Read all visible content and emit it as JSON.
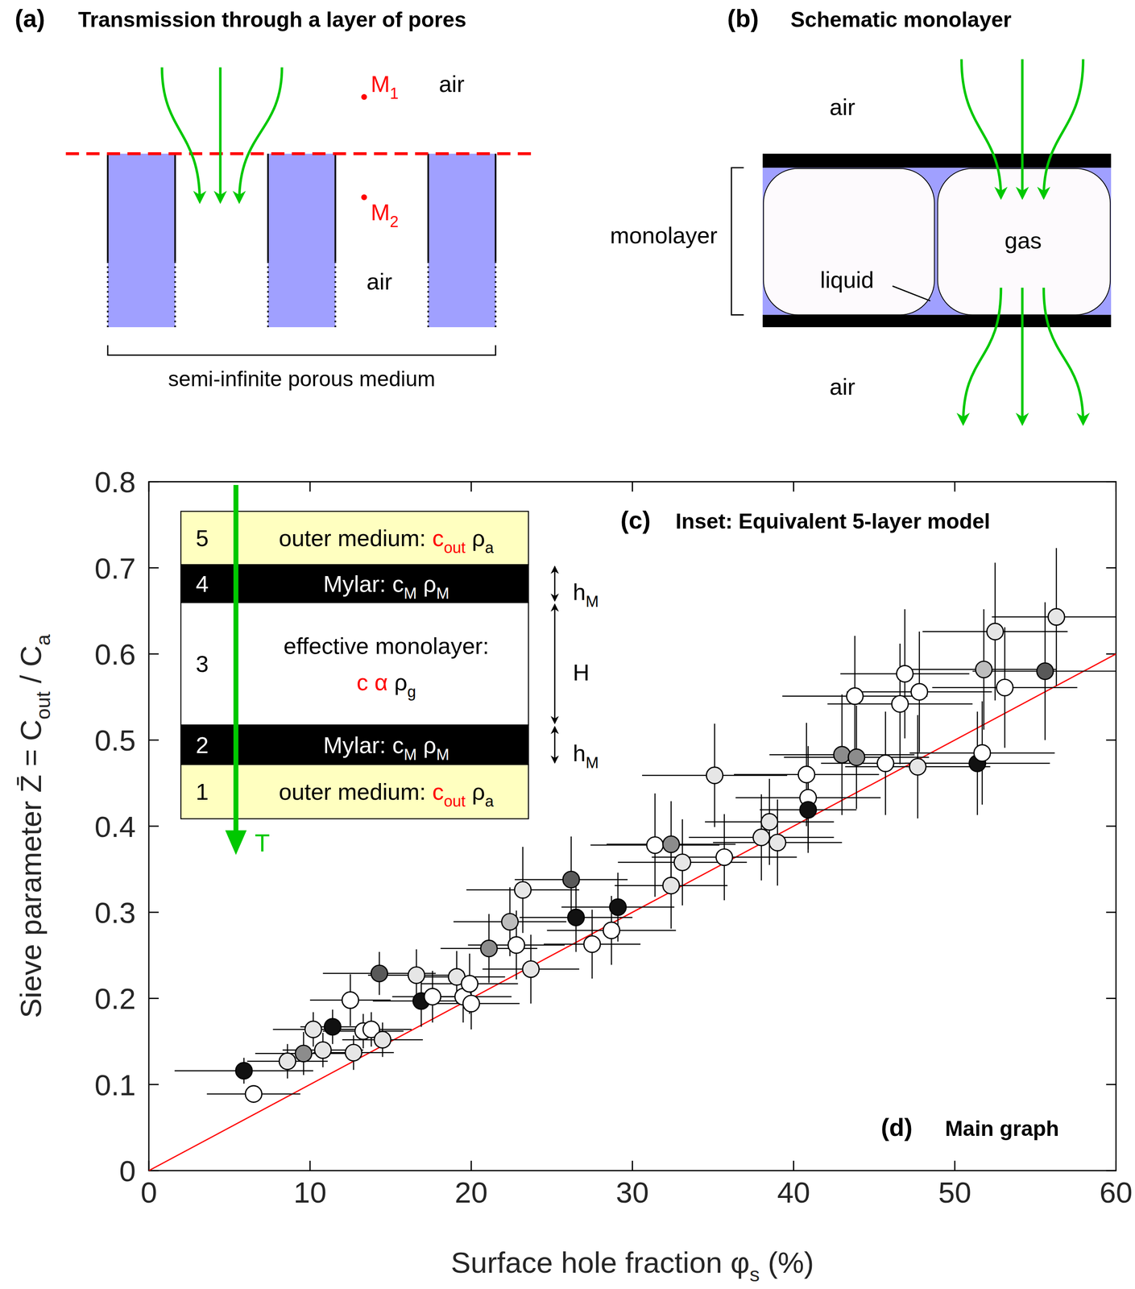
{
  "chart_data": {
    "type": "scatter",
    "letter": "(d)",
    "title": "Main graph",
    "x_label": [
      {
        "t": "Surface hole fraction φ"
      },
      {
        "t": "s",
        "sub": true
      },
      {
        "t": " (%)"
      }
    ],
    "y_label": [
      {
        "t": "Sieve parameter Z̄ = C"
      },
      {
        "t": "out",
        "sub": true
      },
      {
        "t": " / C"
      },
      {
        "t": "a",
        "sub": true
      }
    ],
    "xlim": [
      0,
      60
    ],
    "ylim": [
      0,
      0.8
    ],
    "xticks": [
      0,
      10,
      20,
      30,
      40,
      50,
      60
    ],
    "yticks": [
      0,
      0.1,
      0.2,
      0.3,
      0.4,
      0.5,
      0.6,
      0.7,
      0.8
    ],
    "grid": false,
    "marker": "circle",
    "x": [
      5.9,
      6.5,
      8.6,
      9.6,
      10.2,
      10.8,
      11.4,
      12.5,
      12.7,
      13.3,
      13.8,
      14.5,
      14.3,
      16.6,
      16.9,
      17.6,
      19.1,
      19.5,
      19.9,
      20.0,
      21.1,
      22.4,
      22.8,
      23.2,
      23.7,
      26.2,
      26.5,
      27.5,
      28.7,
      29.1,
      31.4,
      32.4,
      32.4,
      33.1,
      35.7,
      35.1,
      38.0,
      38.5,
      39.0,
      40.8,
      40.9,
      40.9,
      43.0,
      43.8,
      43.9,
      45.7,
      46.6,
      46.9,
      47.7,
      47.8,
      51.4,
      51.7,
      51.8,
      52.5,
      53.1,
      55.6,
      56.3
    ],
    "values": [
      0.116,
      0.089,
      0.127,
      0.136,
      0.164,
      0.14,
      0.167,
      0.198,
      0.137,
      0.162,
      0.164,
      0.152,
      0.229,
      0.227,
      0.197,
      0.202,
      0.225,
      0.202,
      0.217,
      0.194,
      0.258,
      0.289,
      0.262,
      0.326,
      0.234,
      0.338,
      0.294,
      0.263,
      0.279,
      0.306,
      0.378,
      0.379,
      0.331,
      0.358,
      0.364,
      0.459,
      0.387,
      0.405,
      0.381,
      0.46,
      0.433,
      0.419,
      0.483,
      0.551,
      0.48,
      0.473,
      0.542,
      0.577,
      0.469,
      0.556,
      0.473,
      0.485,
      0.582,
      0.626,
      0.561,
      0.58,
      0.643
    ],
    "x_err": [
      4.3,
      2.9,
      2.5,
      3.0,
      2.5,
      2.5,
      2.0,
      2.5,
      2.5,
      2.5,
      2.5,
      2.5,
      3.5,
      3.0,
      3.0,
      2.5,
      3.0,
      3.0,
      3.0,
      3.0,
      3.0,
      3.5,
      3.0,
      3.5,
      3.0,
      3.5,
      3.5,
      3.0,
      4.0,
      3.5,
      4.0,
      4.0,
      3.5,
      4.0,
      4.5,
      4.5,
      4.5,
      4.0,
      4.0,
      4.5,
      4.5,
      3.0,
      4.5,
      4.5,
      4.5,
      4.0,
      4.5,
      4.0,
      4.5,
      4.5,
      4.5,
      4.5,
      4.5,
      4.5,
      4.5,
      4.5,
      4.0
    ],
    "y_err": [
      0.015,
      0.01,
      0.02,
      0.025,
      0.02,
      0.02,
      0.02,
      0.03,
      0.02,
      0.02,
      0.02,
      0.02,
      0.025,
      0.03,
      0.03,
      0.03,
      0.03,
      0.03,
      0.035,
      0.03,
      0.04,
      0.04,
      0.04,
      0.05,
      0.04,
      0.05,
      0.04,
      0.04,
      0.04,
      0.04,
      0.06,
      0.05,
      0.05,
      0.05,
      0.05,
      0.06,
      0.05,
      0.05,
      0.05,
      0.06,
      0.06,
      0.05,
      0.07,
      0.07,
      0.06,
      0.06,
      0.07,
      0.075,
      0.06,
      0.07,
      0.06,
      0.06,
      0.07,
      0.08,
      0.07,
      0.08,
      0.08
    ],
    "colors": [
      "#111111",
      "#ffffff",
      "#e6e6e6",
      "#8c8c8c",
      "#e6e6e6",
      "#e6e6e6",
      "#111111",
      "#ffffff",
      "#e6e6e6",
      "#ffffff",
      "#ffffff",
      "#e6e6e6",
      "#595959",
      "#e6e6e6",
      "#111111",
      "#ffffff",
      "#e6e6e6",
      "#ffffff",
      "#ffffff",
      "#ffffff",
      "#8c8c8c",
      "#bdbdbd",
      "#ffffff",
      "#e6e6e6",
      "#e6e6e6",
      "#595959",
      "#111111",
      "#ffffff",
      "#ffffff",
      "#111111",
      "#ffffff",
      "#8c8c8c",
      "#e6e6e6",
      "#e6e6e6",
      "#ffffff",
      "#e6e6e6",
      "#e6e6e6",
      "#e6e6e6",
      "#e6e6e6",
      "#ffffff",
      "#ffffff",
      "#111111",
      "#8c8c8c",
      "#ffffff",
      "#8c8c8c",
      "#ffffff",
      "#ffffff",
      "#ffffff",
      "#e6e6e6",
      "#ffffff",
      "#111111",
      "#ffffff",
      "#bdbdbd",
      "#e6e6e6",
      "#ffffff",
      "#595959",
      "#e6e6e6"
    ],
    "reference_line": {
      "x": [
        0,
        60
      ],
      "values": [
        0,
        0.6
      ],
      "color": "#ff0000"
    }
  },
  "panel_a": {
    "letter": "(a)",
    "title": "Transmission through a layer of pores",
    "points": [
      [
        {
          "t": "M"
        },
        {
          "t": "1",
          "sub": true
        }
      ],
      [
        {
          "t": "M"
        },
        {
          "t": "2",
          "sub": true
        }
      ]
    ],
    "media": [
      "air",
      "air"
    ],
    "caption": "semi-infinite porous medium"
  },
  "panel_b": {
    "letter": "(b)",
    "title": "Schematic monolayer",
    "media": [
      "air",
      "air"
    ],
    "bracket": "monolayer",
    "bubble": "gas",
    "film": "liquid"
  },
  "inset": {
    "letter": "(c)",
    "title": "Inset: Equivalent 5-layer model",
    "arrow_label": "T",
    "layers": [
      {
        "number": "5",
        "color": "#ffffc0",
        "lines": [
          [
            {
              "t": "outer medium: "
            },
            {
              "t": "c",
              "color": "#ff0000"
            },
            {
              "t": "out",
              "sub": true,
              "color": "#ff0000"
            },
            {
              "t": "  ρ"
            },
            {
              "t": "a",
              "sub": true
            }
          ]
        ]
      },
      {
        "number": "4",
        "color": "#000000",
        "lines": [
          [
            {
              "t": "Mylar: c"
            },
            {
              "t": "M",
              "sub": true
            },
            {
              "t": "  ρ"
            },
            {
              "t": "M",
              "sub": true
            }
          ]
        ]
      },
      {
        "number": "3",
        "color": "#ffffff",
        "lines": [
          [
            {
              "t": "effective monolayer:"
            }
          ],
          [
            {
              "t": "c  α",
              "color": "#ff0000"
            },
            {
              "t": "  ρ"
            },
            {
              "t": "g",
              "sub": true
            }
          ]
        ]
      },
      {
        "number": "2",
        "color": "#000000",
        "lines": [
          [
            {
              "t": "Mylar: c"
            },
            {
              "t": "M",
              "sub": true
            },
            {
              "t": "  ρ"
            },
            {
              "t": "M",
              "sub": true
            }
          ]
        ]
      },
      {
        "number": "1",
        "color": "#ffffc0",
        "lines": [
          [
            {
              "t": "outer medium: "
            },
            {
              "t": "c",
              "color": "#ff0000"
            },
            {
              "t": "out",
              "sub": true,
              "color": "#ff0000"
            },
            {
              "t": "  ρ"
            },
            {
              "t": "a",
              "sub": true
            }
          ]
        ]
      }
    ],
    "dimensions": [
      [
        {
          "t": "h"
        },
        {
          "t": "M",
          "sub": true
        }
      ],
      [
        {
          "t": "H"
        }
      ],
      [
        {
          "t": "h"
        },
        {
          "t": "M",
          "sub": true
        }
      ]
    ]
  }
}
